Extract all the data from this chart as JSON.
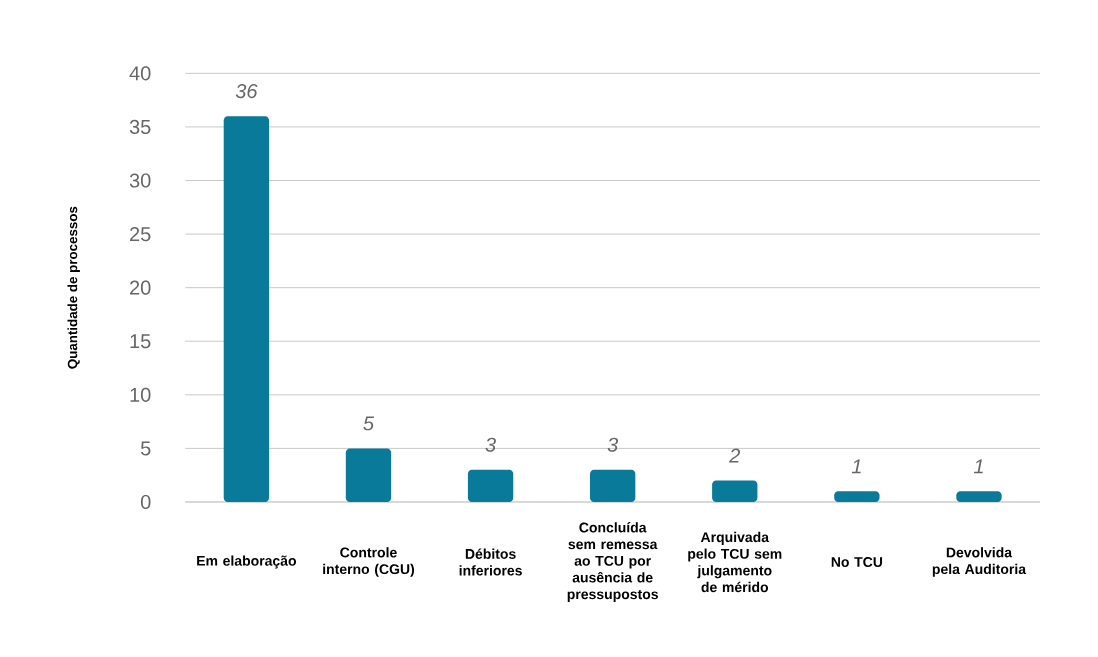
{
  "chart_data": {
    "type": "bar",
    "ylabel": "Quantidade de processos",
    "categories": [
      "Em elaboração",
      "Controle interno (CGU)",
      "Débitos inferiores",
      "Concluída sem remessa ao TCU por ausência de pressupostos",
      "Arquivada pelo TCU sem julgamento de mérido",
      "No TCU",
      "Devolvida pela Auditoria"
    ],
    "values": [
      36,
      5,
      3,
      3,
      2,
      1,
      1
    ],
    "color": "#0a7a9a",
    "ylim": [
      0,
      40
    ],
    "yticks": [
      0,
      5,
      10,
      15,
      20,
      25,
      30,
      35,
      40
    ],
    "grid": "y",
    "data_labels": true
  }
}
